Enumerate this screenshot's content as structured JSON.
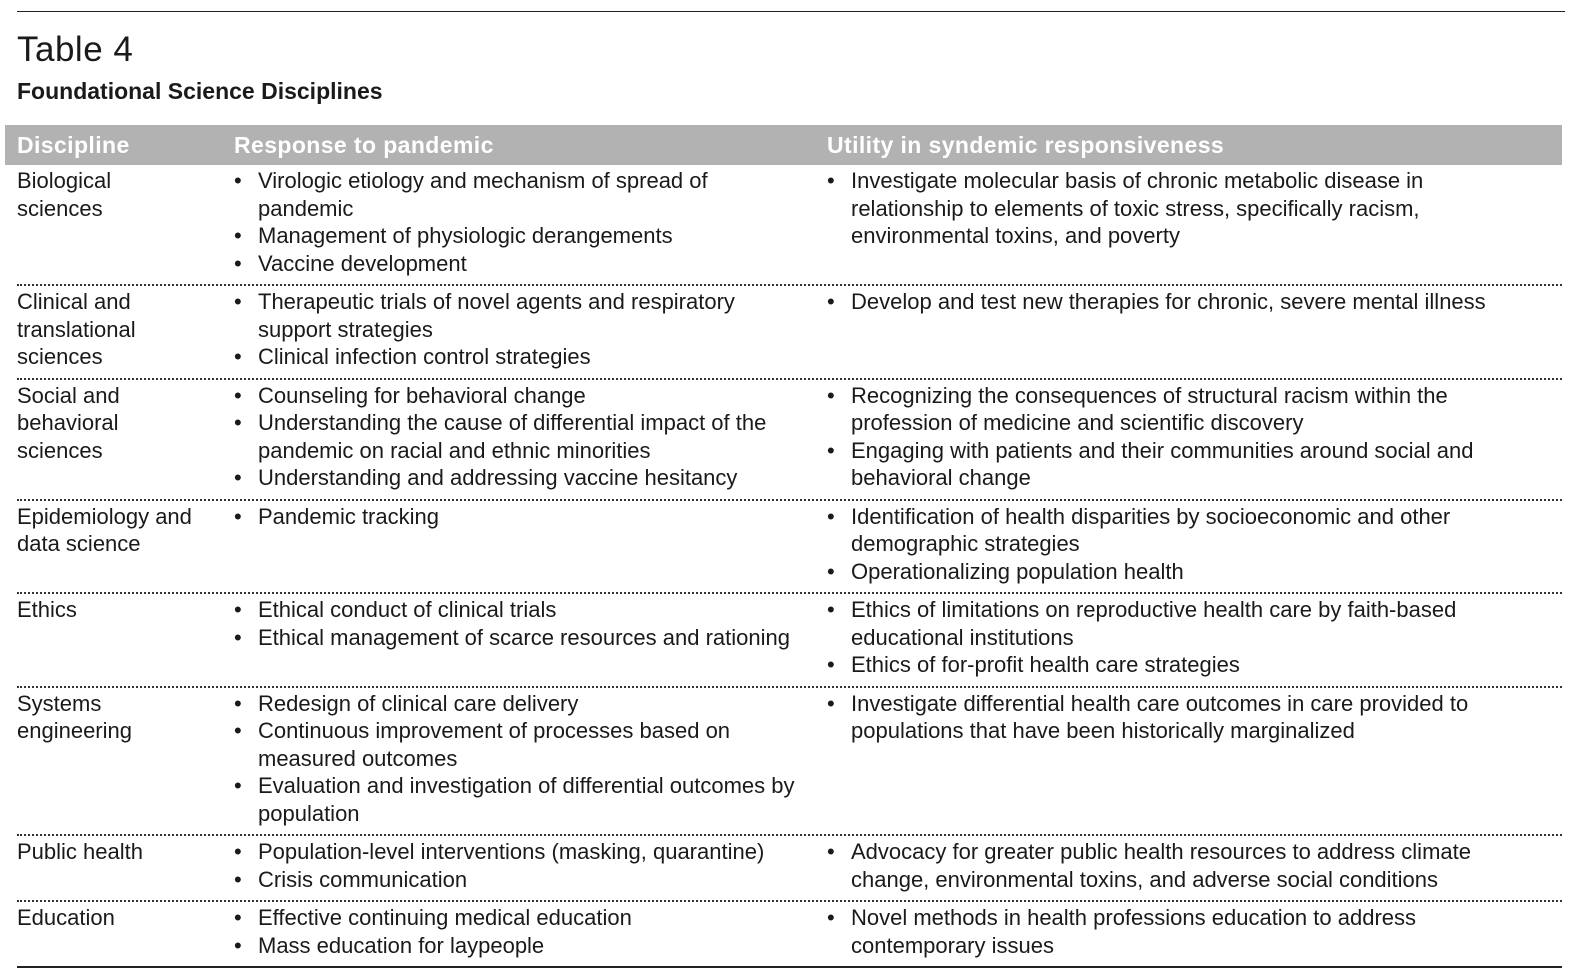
{
  "header": {
    "title": "Table 4",
    "subtitle": "Foundational Science Disciplines"
  },
  "table": {
    "columns": [
      "Discipline",
      "Response to pandemic",
      "Utility in syndemic responsiveness"
    ],
    "rows": [
      {
        "discipline": "Biological sciences",
        "response": [
          "Virologic etiology and mechanism of spread of pandemic",
          "Management of physiologic derangements",
          "Vaccine development"
        ],
        "utility": [
          "Investigate molecular basis of chronic metabolic disease in relationship to elements of toxic stress, specifically racism, environmental toxins, and poverty"
        ]
      },
      {
        "discipline": "Clinical and translational sciences",
        "response": [
          "Therapeutic trials of novel agents and respiratory support strategies",
          "Clinical infection control strategies"
        ],
        "utility": [
          "Develop and test new therapies for chronic, severe mental illness"
        ]
      },
      {
        "discipline": "Social and behavioral sciences",
        "response": [
          "Counseling for behavioral change",
          "Understanding the cause of differential impact of the pandemic on racial and ethnic minorities",
          "Understanding and addressing vaccine hesitancy"
        ],
        "utility": [
          "Recognizing the consequences of structural racism within the profession of medicine and scientific discovery",
          "Engaging with patients and their communities around social and behavioral change"
        ]
      },
      {
        "discipline": "Epidemiology and data science",
        "response": [
          "Pandemic tracking"
        ],
        "utility": [
          "Identification of health disparities by socioeconomic and other demographic strategies",
          "Operationalizing population health"
        ]
      },
      {
        "discipline": "Ethics",
        "response": [
          "Ethical conduct of clinical trials",
          "Ethical management of scarce resources and rationing"
        ],
        "utility": [
          "Ethics of limitations on reproductive health care by faith-based educational institutions",
          "Ethics of for-profit health care strategies"
        ]
      },
      {
        "discipline": "Systems engineering",
        "response": [
          "Redesign of clinical care delivery",
          "Continuous improvement of processes based on measured outcomes",
          "Evaluation and investigation of differential outcomes by population"
        ],
        "utility": [
          "Investigate differential health care outcomes in care provided to populations that have been historically marginalized"
        ]
      },
      {
        "discipline": "Public health",
        "response": [
          "Population-level interventions (masking, quarantine)",
          "Crisis communication"
        ],
        "utility": [
          "Advocacy for greater public health resources to address climate change, environmental toxins, and adverse social conditions"
        ]
      },
      {
        "discipline": "Education",
        "response": [
          "Effective continuing medical education",
          "Mass education for laypeople"
        ],
        "utility": [
          "Novel methods in health professions education to address contemporary issues"
        ]
      }
    ]
  }
}
